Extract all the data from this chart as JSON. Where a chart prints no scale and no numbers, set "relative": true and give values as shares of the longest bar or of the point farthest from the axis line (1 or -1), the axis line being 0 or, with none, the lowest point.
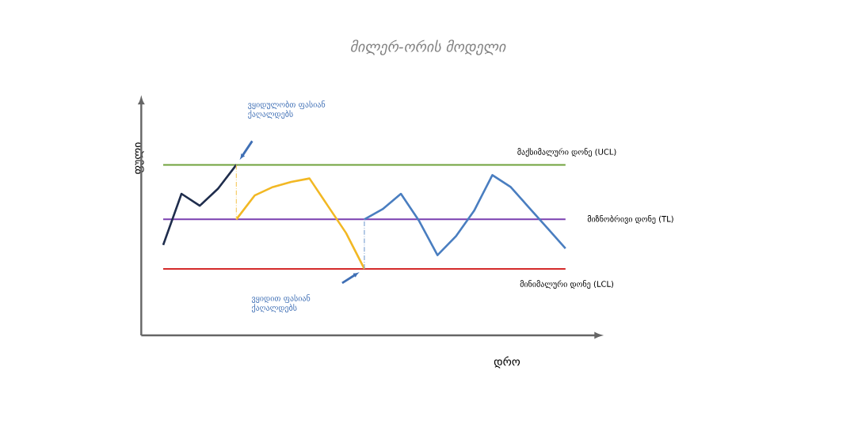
{
  "chart_data": {
    "type": "line",
    "title": "მილერ-ორის მოდელი",
    "xlabel": "დრო",
    "ylabel": "ფული",
    "relative": true,
    "tick_labels": false,
    "categories": [
      null,
      null,
      null,
      null,
      null,
      null,
      null,
      null,
      null,
      null,
      null,
      null,
      null,
      null,
      null,
      null,
      null,
      null,
      null,
      null,
      null,
      null,
      null
    ],
    "series": [
      {
        "color": "#1f2d4d",
        "values": [
          0.53,
          0.83,
          0.76,
          0.86,
          1,
          null,
          null,
          null,
          null,
          null,
          null,
          null,
          null,
          null,
          null,
          null,
          null,
          null,
          null,
          null,
          null,
          null,
          null
        ]
      },
      {
        "color": "#f2b824",
        "values": [
          null,
          null,
          null,
          null,
          0.68,
          0.82,
          0.87,
          0.9,
          0.92,
          0.76,
          0.6,
          0.39,
          null,
          null,
          null,
          null,
          null,
          null,
          null,
          null,
          null,
          null,
          null
        ]
      },
      {
        "color": "#4a7ec0",
        "values": [
          null,
          null,
          null,
          null,
          null,
          null,
          null,
          null,
          null,
          null,
          null,
          0.68,
          0.74,
          0.83,
          0.67,
          0.47,
          0.58,
          0.73,
          0.94,
          0.87,
          0.75,
          0.63,
          0.51
        ]
      }
    ],
    "ref_lines": [
      {
        "axis": "y",
        "value": 1,
        "label": "მაქსიმალური დონე (UCL)",
        "color": "#70a23c"
      },
      {
        "axis": "y",
        "value": 0.68,
        "label": "მიზნობრივი დონე (TL)",
        "color": "#7a3fb0"
      },
      {
        "axis": "y",
        "value": 0.39,
        "label": "მინიმალური დონე (LCL)",
        "color": "#d42a2a"
      }
    ],
    "annotations": [
      "ვყიდულობთ ფასიან ქაღალდებს",
      "ვყიდით ფასიან ქაღალდებს"
    ]
  }
}
